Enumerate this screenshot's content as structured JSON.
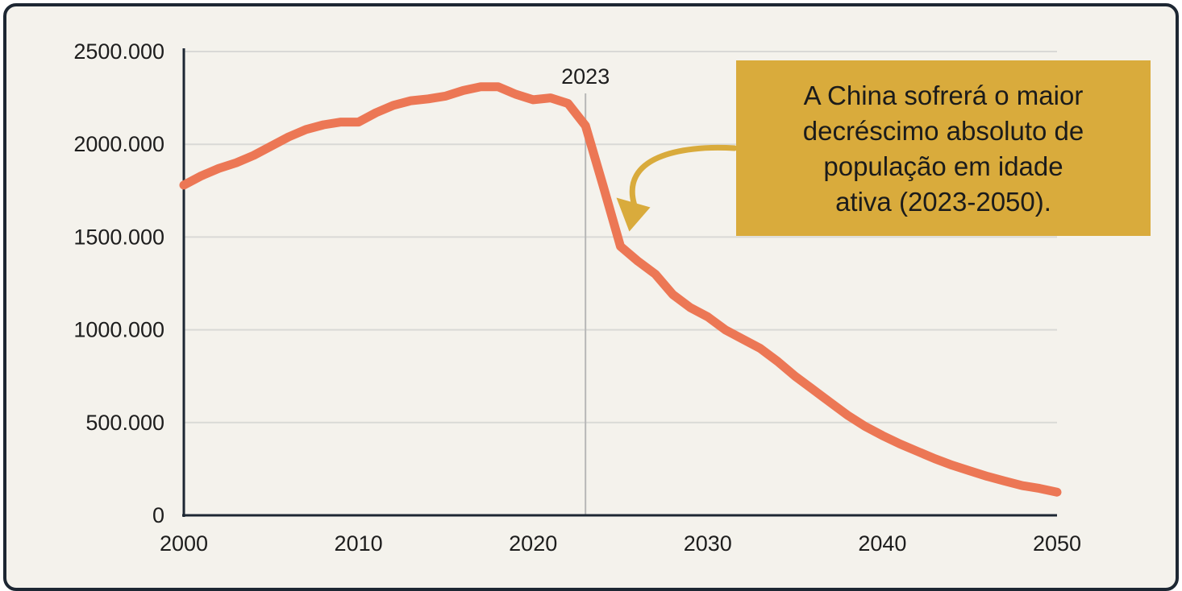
{
  "chart_data": {
    "type": "line",
    "title": "",
    "xlabel": "",
    "ylabel": "",
    "xlim": [
      2000,
      2050
    ],
    "ylim": [
      0,
      2500
    ],
    "x_ticks": [
      2000,
      2010,
      2020,
      2030,
      2040,
      2050
    ],
    "y_ticks": [
      0,
      500,
      1000,
      1500,
      2000,
      2500
    ],
    "x_tick_labels": [
      "2000",
      "2010",
      "2020",
      "2030",
      "2040",
      "2050"
    ],
    "y_tick_labels": [
      "0",
      "500.000",
      "1000.000",
      "1500.000",
      "2000.000",
      "2500.000"
    ],
    "grid": "horizontal",
    "series": [
      {
        "color": "#ec7755",
        "x": [
          2000,
          2001,
          2002,
          2003,
          2004,
          2005,
          2006,
          2007,
          2008,
          2009,
          2010,
          2011,
          2012,
          2013,
          2014,
          2015,
          2016,
          2017,
          2018,
          2019,
          2020,
          2021,
          2022,
          2023,
          2024,
          2025,
          2026,
          2027,
          2028,
          2029,
          2030,
          2031,
          2032,
          2033,
          2034,
          2035,
          2036,
          2037,
          2038,
          2039,
          2040,
          2041,
          2042,
          2043,
          2044,
          2045,
          2046,
          2047,
          2048,
          2049,
          2050
        ],
        "values": [
          1780,
          1830,
          1870,
          1900,
          1940,
          1990,
          2040,
          2080,
          2105,
          2120,
          2120,
          2170,
          2210,
          2235,
          2245,
          2260,
          2290,
          2310,
          2310,
          2270,
          2240,
          2250,
          2220,
          2100,
          1780,
          1450,
          1370,
          1300,
          1190,
          1120,
          1070,
          1000,
          950,
          900,
          830,
          750,
          680,
          610,
          540,
          480,
          430,
          385,
          345,
          305,
          270,
          240,
          210,
          185,
          160,
          145,
          125
        ]
      }
    ],
    "annotations": {
      "vline": {
        "x": 2023,
        "label": "2023",
        "color": "#b7b7b7"
      },
      "callout": {
        "lines": [
          "A China sofrerá o maior",
          "decréscimo absoluto de",
          "população em idade",
          "ativa (2023-2050)."
        ],
        "background": "#d9ab3c",
        "arrow_color": "#d9ab3c",
        "arrow_target": {
          "x": 2025.6,
          "y": 1530
        }
      }
    },
    "colors": {
      "background": "#f4f2ec",
      "frame": "#1d2733",
      "axis": "#1d2733",
      "grid": "#d9d9d6"
    }
  }
}
